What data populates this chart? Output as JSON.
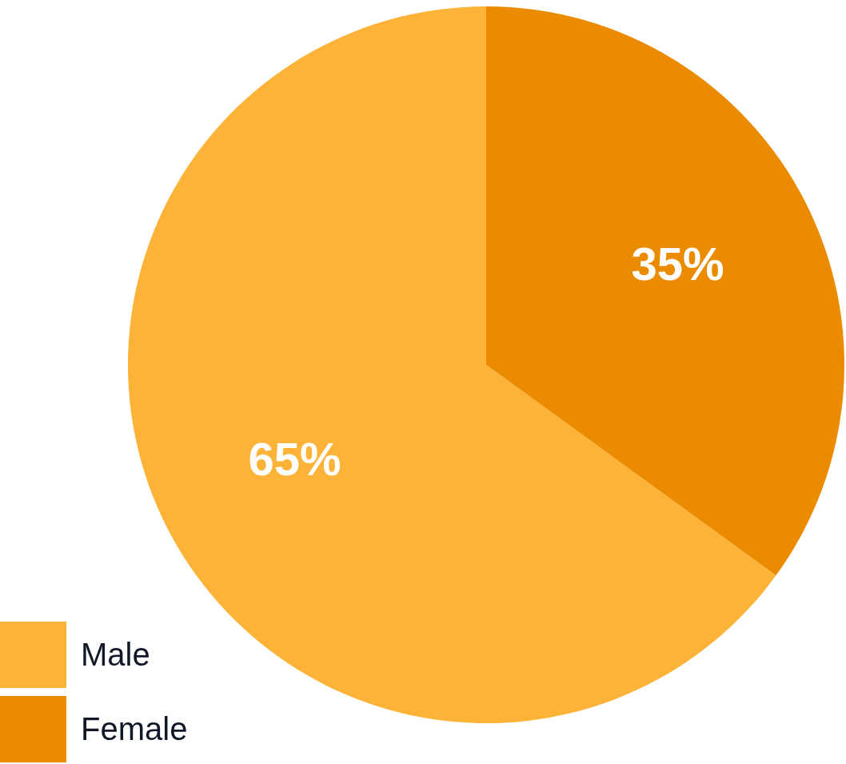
{
  "chart_data": {
    "type": "pie",
    "categories": [
      "Male",
      "Female"
    ],
    "values": [
      65,
      35
    ],
    "colors": [
      "#fdb238",
      "#eb8c00"
    ],
    "value_labels": [
      "65%",
      "35%"
    ],
    "legend": "bottom left"
  }
}
